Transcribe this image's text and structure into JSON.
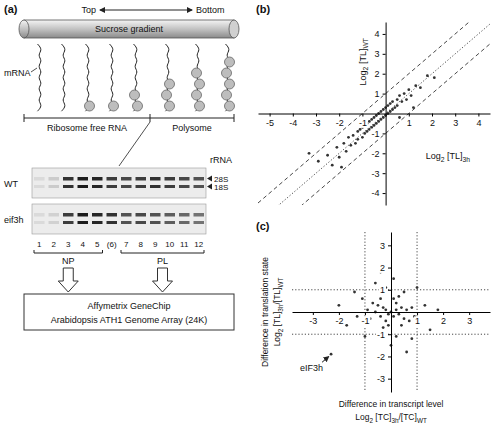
{
  "diagram": {
    "panel_label": "(a)",
    "top": "Top",
    "bottom": "Bottom",
    "tube_label": "Sucrose gradient",
    "mrna": "mRNA",
    "fractions": [
      "Ribosome free RNA",
      "Polysome"
    ],
    "rrna": "rRNA",
    "rows": [
      "WT",
      "eif3h"
    ],
    "bands": [
      "28S",
      "18S"
    ],
    "lanes": [
      "1",
      "2",
      "3",
      "4",
      "5",
      "(6)",
      "7",
      "8",
      "9",
      "10",
      "11",
      "12"
    ],
    "groups": [
      "NP",
      "PL"
    ],
    "array": [
      "Affymetrix GeneChip",
      "Arabidopsis ATH1 Genome Array (24K)"
    ]
  },
  "chart_data": [
    {
      "panel_label": "(b)",
      "type": "scatter",
      "color": "#333333",
      "marker": "circle",
      "xlabel": [
        {
          "text": [
            "Log",
            "2",
            " [TL]",
            "3h"
          ],
          "sub": [
            false,
            true,
            false,
            true
          ]
        }
      ],
      "ylabel": [
        {
          "text": [
            "Log",
            "2",
            " [TL]",
            "WT"
          ],
          "sub": [
            false,
            true,
            false,
            true
          ]
        }
      ],
      "xlim": [
        -5.5,
        4.5
      ],
      "ylim": [
        -4.6,
        4.6
      ],
      "xticks": [
        -5,
        -4,
        -3,
        -2,
        -1,
        1,
        2,
        3,
        4
      ],
      "yticks": [
        -4,
        -3,
        -2,
        -1,
        1,
        2,
        3,
        4
      ],
      "reference_lines": [
        {
          "axis": "diagonal",
          "value": 0,
          "line_style": "dotted"
        },
        {
          "axis": "diagonal",
          "value": 1,
          "line_style": "dashed"
        },
        {
          "axis": "diagonal",
          "value": -1,
          "line_style": "dashed"
        }
      ],
      "x": [
        -2.9,
        -2.5,
        -2.3,
        -2.1,
        -2.0,
        -1.8,
        -1.7,
        -1.6,
        -1.5,
        -1.4,
        -1.3,
        -1.2,
        -1.2,
        -1.1,
        -1.0,
        -1.0,
        -0.9,
        -0.9,
        -0.8,
        -0.8,
        -0.7,
        -0.7,
        -0.6,
        -0.6,
        -0.5,
        -0.5,
        -0.4,
        -0.4,
        -0.3,
        -0.3,
        -0.2,
        -0.2,
        -0.1,
        -0.1,
        0,
        0,
        0.1,
        0.1,
        0.2,
        0.2,
        0.3,
        0.3,
        0.4,
        0.5,
        0.5,
        0.6,
        0.7,
        0.8,
        0.9,
        1.0,
        1.1,
        1.3,
        1.5,
        1.8,
        2.1,
        -3.3,
        -1.9,
        0.6,
        -0.3,
        1.2
      ],
      "values": [
        -2.4,
        -2.1,
        -2.6,
        -1.7,
        -2.2,
        -1.5,
        -1.9,
        -1.2,
        -1.6,
        -1.1,
        -1.5,
        -0.9,
        -1.3,
        -0.8,
        -1.2,
        -0.7,
        -1.0,
        -0.6,
        -0.9,
        -0.5,
        -0.8,
        -0.4,
        -0.7,
        -0.3,
        -0.6,
        -0.2,
        -0.5,
        -0.1,
        -0.4,
        0,
        -0.3,
        0.1,
        -0.2,
        0.2,
        -0.1,
        0.3,
        0,
        0.4,
        0.1,
        0.5,
        0.2,
        0.6,
        0.3,
        0.7,
        0.4,
        0.9,
        0.6,
        1.0,
        0.7,
        1.2,
        0.9,
        1.4,
        1.3,
        1.9,
        1.8,
        -2.0,
        -2.7,
        -0.2,
        0.9,
        0.3
      ]
    },
    {
      "panel_label": "(c)",
      "type": "scatter",
      "color": "#333333",
      "marker": "circle",
      "xlabel": [
        {
          "text": [
            "Difference  in transcript level"
          ],
          "sub": [
            false
          ]
        },
        {
          "text": [
            "Log",
            "2",
            " [TC]",
            "3h",
            "/[TC]",
            "WT"
          ],
          "sub": [
            false,
            true,
            false,
            true,
            false,
            true
          ]
        }
      ],
      "ylabel": [
        {
          "text": [
            "Difference in translation state"
          ],
          "sub": [
            false
          ]
        },
        {
          "text": [
            "Log",
            "2",
            " [TL]",
            "3h",
            "/[TL]",
            "WT"
          ],
          "sub": [
            false,
            true,
            false,
            true,
            false,
            true
          ]
        }
      ],
      "xlim": [
        -3.8,
        3.8
      ],
      "ylim": [
        -3.6,
        3.6
      ],
      "xticks": [
        -3,
        -2,
        -1,
        1,
        2,
        3
      ],
      "yticks": [
        -3,
        -2,
        -1,
        1,
        2,
        3
      ],
      "reference_lines": [
        {
          "axis": "x",
          "value": -1,
          "line_style": "dotted"
        },
        {
          "axis": "x",
          "value": 1,
          "line_style": "dotted"
        },
        {
          "axis": "y",
          "value": -1,
          "line_style": "dotted"
        },
        {
          "axis": "y",
          "value": 1,
          "line_style": "dotted"
        }
      ],
      "annotations": [
        {
          "text": "eIF3h",
          "x": -2.3,
          "y": -1.9
        }
      ],
      "x": [
        0,
        0.2,
        -0.2,
        0.1,
        -0.1,
        0.3,
        -0.3,
        0.4,
        -0.4,
        0.5,
        -0.5,
        0.2,
        -0.2,
        0.6,
        -0.6,
        0.1,
        -0.1,
        0.7,
        -0.7,
        0.4,
        -0.4,
        0.8,
        -0.8,
        0.3,
        -0.3,
        0.9,
        -0.9,
        1.1,
        -1.1,
        0.5,
        -0.5,
        1.3,
        -1.3,
        0.2,
        -0.2,
        1.5,
        -1.4,
        0.8,
        -0.6,
        1.8,
        -1.7,
        0.0,
        0.1,
        2.1,
        -2.0,
        1.0,
        -1.0,
        0.6,
        -0.4,
        -2.3
      ],
      "values": [
        0,
        0.1,
        0.1,
        -0.2,
        -0.1,
        -0.1,
        0.2,
        0.2,
        -0.2,
        -0.3,
        0.3,
        0.4,
        -0.4,
        0.1,
        0,
        0.6,
        -0.6,
        -0.4,
        0.4,
        -0.6,
        0.6,
        0.2,
        -0.3,
        0.7,
        -0.7,
        -0.2,
        0.1,
        -0.5,
        0.6,
        0.9,
        -0.9,
        0.3,
        -0.2,
        -1.1,
        1.1,
        -0.8,
        0.9,
        -1.2,
        1.3,
        0.1,
        -0.6,
        -1.5,
        1.5,
        -0.4,
        0.3,
        1.1,
        -1.1,
        -1.8,
        1.8,
        -1.9
      ]
    }
  ]
}
